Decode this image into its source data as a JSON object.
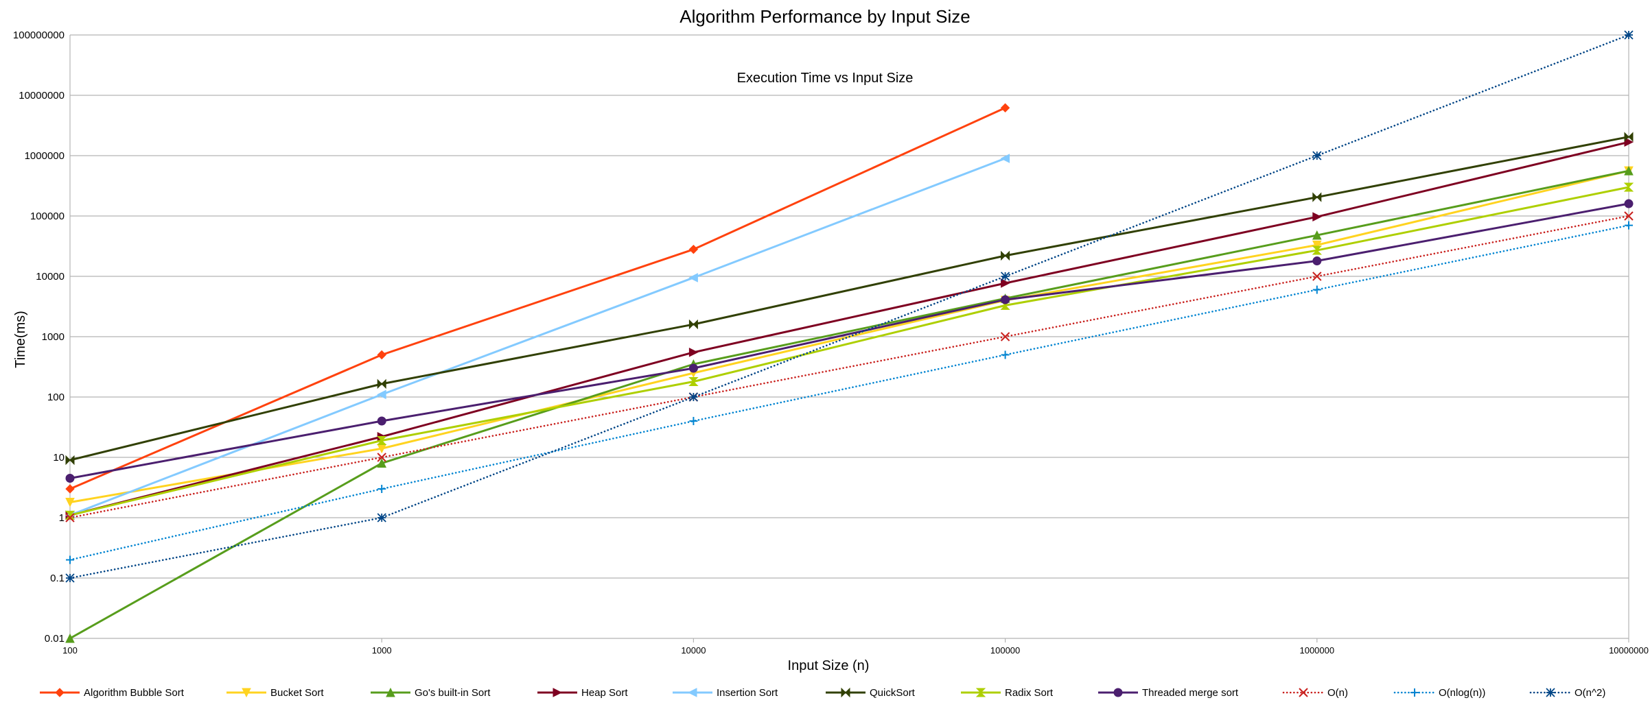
{
  "chart_data": {
    "type": "line",
    "title": "Algorithm Performance by Input Size",
    "subtitle": "Execution Time vs Input Size",
    "xlabel": "Input Size (n)",
    "ylabel": "Time(ms)",
    "x_scale": "log",
    "y_scale": "log",
    "x": [
      100,
      1000,
      10000,
      100000,
      1000000,
      10000000
    ],
    "x_tick_labels": [
      "100",
      "1000",
      "10000",
      "100000",
      "1000000",
      "10000000"
    ],
    "y_tick_labels": [
      "0.01",
      "0.1",
      "1",
      "10",
      "100",
      "1000",
      "10000",
      "100000",
      "1000000",
      "10000000",
      "100000000"
    ],
    "ylim": [
      0.01,
      100000000
    ],
    "xlim": [
      100,
      10000000
    ],
    "grid": true,
    "legend_position": "bottom",
    "series": [
      {
        "name": "Algorithm Bubble Sort",
        "color": "#ff420e",
        "dash": "solid",
        "marker": "diamond",
        "values": [
          3,
          500,
          28000,
          6200000,
          null,
          null
        ]
      },
      {
        "name": "Bucket Sort",
        "color": "#ffd320",
        "dash": "solid",
        "marker": "triangle-down",
        "values": [
          1.8,
          14,
          250,
          4000,
          33000,
          560000
        ]
      },
      {
        "name": "Go's built-in Sort",
        "color": "#579d1c",
        "dash": "solid",
        "marker": "triangle-up",
        "values": [
          0.01,
          8,
          350,
          4300,
          48000,
          560000
        ]
      },
      {
        "name": "Heap Sort",
        "color": "#7e0021",
        "dash": "solid",
        "marker": "triangle-right",
        "values": [
          1.1,
          22,
          550,
          7700,
          97000,
          1680000
        ]
      },
      {
        "name": "Insertion Sort",
        "color": "#83caff",
        "dash": "solid",
        "marker": "triangle-left",
        "values": [
          1.1,
          110,
          9500,
          900000,
          null,
          null
        ]
      },
      {
        "name": "QuickSort",
        "color": "#314004",
        "dash": "solid",
        "marker": "bowtie",
        "values": [
          9,
          165,
          1600,
          22000,
          205000,
          2050000
        ]
      },
      {
        "name": "Radix Sort",
        "color": "#aecf00",
        "dash": "solid",
        "marker": "hourglass",
        "values": [
          1.1,
          19,
          180,
          3300,
          27000,
          300000
        ]
      },
      {
        "name": "Threaded merge sort",
        "color": "#4b1f6f",
        "dash": "solid",
        "marker": "circle",
        "values": [
          4.5,
          40,
          300,
          4100,
          18000,
          160000
        ]
      },
      {
        "name": "O(n)",
        "color": "#c9211e",
        "dash": "dotted",
        "marker": "x",
        "values": [
          1,
          10,
          100,
          1000,
          10000,
          100000
        ]
      },
      {
        "name": "O(nlog(n))",
        "color": "#0084d1",
        "dash": "dotted",
        "marker": "plus",
        "values": [
          0.2,
          3,
          40,
          500,
          6000,
          70000
        ]
      },
      {
        "name": "O(n^2)",
        "color": "#004586",
        "dash": "dotted",
        "marker": "star",
        "values": [
          0.1,
          1,
          100,
          10000,
          1000000,
          100000000
        ]
      }
    ]
  }
}
